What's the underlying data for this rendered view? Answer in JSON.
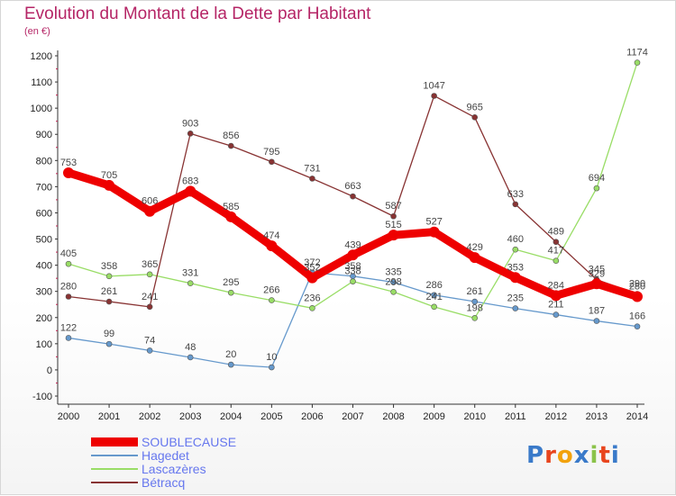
{
  "header": {
    "title": "Evolution du Montant de la Dette par Habitant",
    "subtitle": "(en €)"
  },
  "logo": {
    "text": "Proxiti",
    "colors": [
      "#3a7ac9",
      "#e8451e",
      "#f2a20c",
      "#3a7ac9",
      "#8bc34a",
      "#e8451e",
      "#3a7ac9"
    ]
  },
  "chart_data": {
    "type": "line",
    "title": "Evolution du Montant de la Dette par Habitant",
    "subtitle": "(en €)",
    "x": [
      "2000",
      "2001",
      "2002",
      "2003",
      "2004",
      "2005",
      "2006",
      "2007",
      "2008",
      "2009",
      "2010",
      "2011",
      "2012",
      "2013",
      "2014"
    ],
    "y_ticks": [
      "-100",
      "0",
      "100",
      "200",
      "300",
      "400",
      "500",
      "600",
      "700",
      "800",
      "900",
      "1000",
      "1100",
      "1200"
    ],
    "ylim": [
      -100,
      1200
    ],
    "grid": false,
    "legend_position": "bottom-left",
    "series": [
      {
        "name": "SOUBLECAUSE",
        "color": "#ee0000",
        "values": [
          753,
          705,
          606,
          683,
          585,
          474,
          352,
          439,
          515,
          527,
          429,
          353,
          284,
          329,
          280
        ]
      },
      {
        "name": "Hagedet",
        "color": "#6699cc",
        "values": [
          122,
          99,
          74,
          48,
          20,
          10,
          372,
          358,
          335,
          286,
          261,
          235,
          211,
          187,
          166
        ]
      },
      {
        "name": "Lascazères",
        "color": "#99dd66",
        "values": [
          405,
          358,
          365,
          331,
          295,
          266,
          236,
          338,
          298,
          241,
          198,
          460,
          417,
          694,
          1174
        ]
      },
      {
        "name": "Bétracq",
        "color": "#883333",
        "values": [
          280,
          261,
          241,
          903,
          856,
          795,
          731,
          663,
          587,
          1047,
          965,
          633,
          489,
          345,
          290
        ]
      }
    ]
  }
}
